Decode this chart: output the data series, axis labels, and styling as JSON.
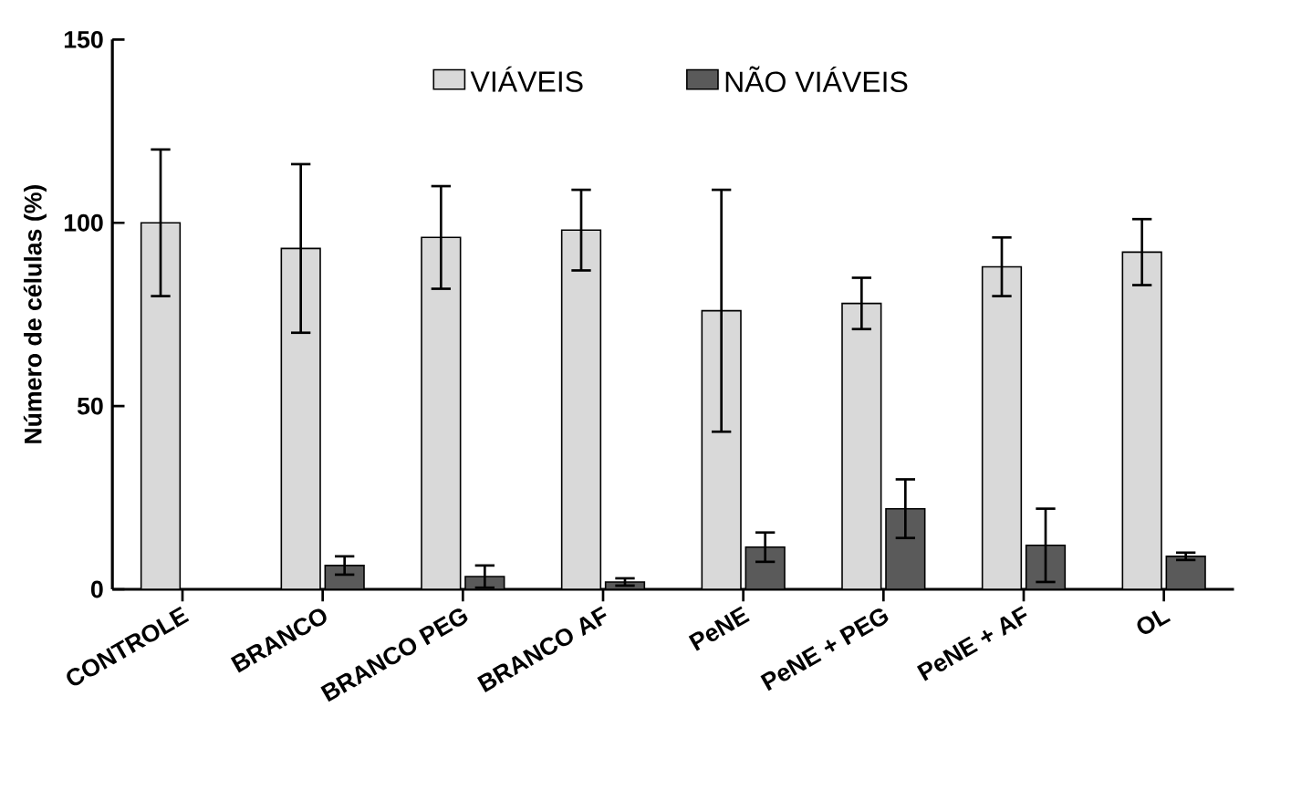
{
  "chart_data": {
    "type": "bar",
    "ylabel": "Número de células (%)",
    "categories": [
      "CONTROLE",
      "BRANCO",
      "BRANCO PEG",
      "BRANCO AF",
      "PeNE",
      "PeNE + PEG",
      "PeNE + AF",
      "OL"
    ],
    "series": [
      {
        "name": "VIÁVEIS",
        "color": "#d9d9d9",
        "values": [
          100,
          93,
          96,
          98,
          76,
          78,
          88,
          92
        ],
        "errors": [
          20,
          23,
          14,
          11,
          33,
          7,
          8,
          9
        ]
      },
      {
        "name": "NÃO VIÁVEIS",
        "color": "#5a5a5a",
        "values": [
          null,
          6.5,
          3.5,
          2,
          11.5,
          22,
          12,
          9
        ],
        "errors": [
          null,
          2.5,
          3,
          1,
          4,
          8,
          10,
          1
        ]
      }
    ],
    "ylim": [
      0,
      150
    ],
    "yticks": [
      0,
      50,
      100,
      150
    ],
    "grid": false,
    "legend": "top"
  }
}
